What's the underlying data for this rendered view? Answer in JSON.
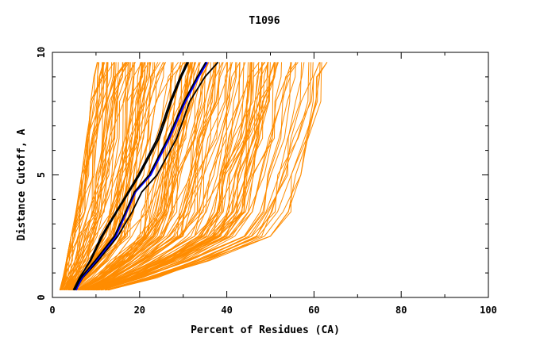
{
  "chart_data": {
    "type": "line",
    "title": "T1096",
    "xlabel": "Percent of Residues (CA)",
    "ylabel": "Distance Cutoff, A",
    "xlim": [
      0,
      100
    ],
    "ylim": [
      0,
      10
    ],
    "xticks": [
      "0",
      "20",
      "40",
      "60",
      "80",
      "100"
    ],
    "yticks": [
      "0",
      "5",
      "10"
    ],
    "grid": false,
    "legend": "none",
    "background_series_color": "#ff8c00",
    "background_series_count": 160,
    "background_envelope": {
      "y": [
        0.3,
        0.8,
        1.5,
        2.5,
        3.5,
        5.0,
        6.5,
        8.0,
        9.0,
        9.6
      ],
      "x_min": [
        1.7,
        2.4,
        3.2,
        4.3,
        5.4,
        6.7,
        7.8,
        8.8,
        9.5,
        10.3
      ],
      "x_max": [
        13.0,
        24.0,
        36.0,
        50.0,
        55.0,
        57.0,
        60.0,
        62.0,
        63.0,
        63.0
      ]
    },
    "series": [
      {
        "color": "#000000",
        "y": [
          0.3,
          0.8,
          1.5,
          2.5,
          3.5,
          5.0,
          6.5,
          8.0,
          9.0,
          9.6
        ],
        "x": [
          4.8,
          6.2,
          8.8,
          11.5,
          14.8,
          20.0,
          24.5,
          27.3,
          29.6,
          31.2
        ]
      },
      {
        "color": "#000000",
        "y": [
          0.3,
          0.8,
          1.5,
          2.5,
          3.5,
          5.0,
          6.5,
          8.0,
          9.0,
          9.6
        ],
        "x": [
          4.9,
          6.3,
          8.6,
          11.2,
          14.6,
          19.7,
          24.1,
          27.0,
          29.3,
          30.9
        ]
      },
      {
        "color": "#000000",
        "y": [
          0.3,
          0.8,
          1.5,
          2.5,
          3.5,
          4.3,
          5.0,
          6.5,
          8.0,
          9.0,
          9.6
        ],
        "x": [
          5.3,
          6.9,
          10.5,
          15.0,
          18.3,
          20.5,
          24.0,
          28.5,
          31.5,
          35.0,
          38.0
        ]
      },
      {
        "color": "#0000ff",
        "y": [
          0.3,
          0.8,
          1.5,
          2.5,
          3.5,
          4.3,
          5.0,
          6.5,
          8.0,
          9.0,
          9.6
        ],
        "x": [
          5.4,
          6.7,
          10.0,
          14.5,
          17.0,
          19.0,
          22.5,
          26.8,
          30.5,
          33.5,
          35.5
        ]
      },
      {
        "color": "#000000",
        "y": [
          0.3,
          0.8,
          1.5,
          2.5,
          3.5,
          4.3,
          5.0,
          6.5,
          8.0,
          9.0,
          9.6
        ],
        "x": [
          5.1,
          6.5,
          9.8,
          14.2,
          16.8,
          18.8,
          22.2,
          26.5,
          30.2,
          33.2,
          35.2
        ]
      }
    ]
  }
}
